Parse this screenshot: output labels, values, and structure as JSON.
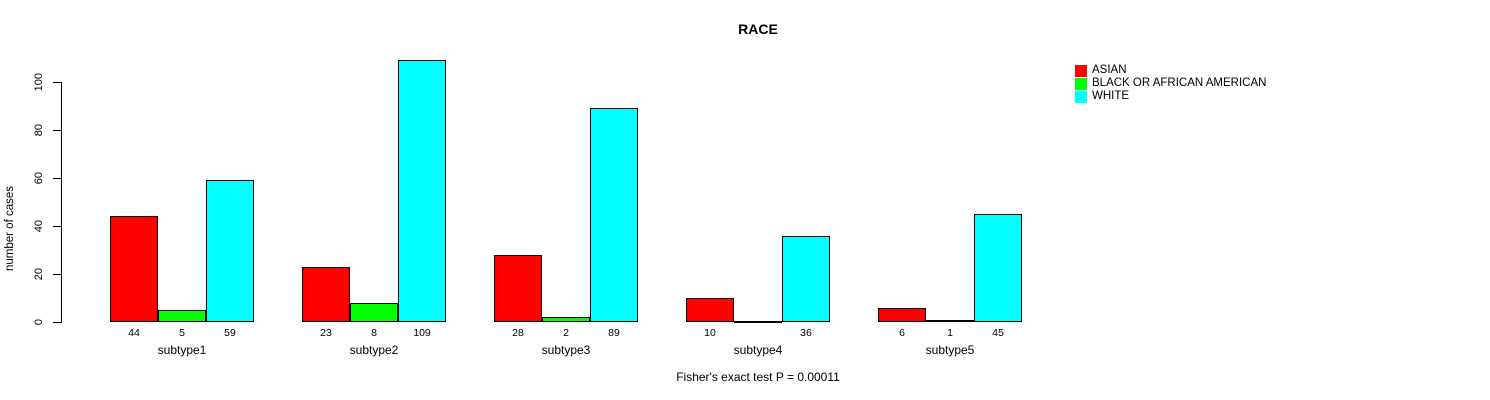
{
  "title": "RACE",
  "annotation": "Fisher's exact test P = 0.00011",
  "colors": {
    "asian": "#FF0000",
    "black_or_african_american": "#00FF00",
    "white": "#00FFFF",
    "axis": "#000000",
    "text": "#000000",
    "background": "#FFFFFF"
  },
  "chart_data": {
    "type": "bar",
    "grouped": true,
    "title": "RACE",
    "ylabel": "number of cases",
    "xlabel": "",
    "annotation": "Fisher's exact test P = 0.00011",
    "categories": [
      "subtype1",
      "subtype2",
      "subtype3",
      "subtype4",
      "subtype5"
    ],
    "series": [
      {
        "name": "ASIAN",
        "color": "#FF0000",
        "values": [
          44,
          23,
          28,
          10,
          6
        ]
      },
      {
        "name": "BLACK OR AFRICAN AMERICAN",
        "color": "#00FF00",
        "values": [
          5,
          8,
          2,
          0,
          1
        ]
      },
      {
        "name": "WHITE",
        "color": "#00FFFF",
        "values": [
          59,
          109,
          89,
          36,
          45
        ]
      }
    ],
    "value_labels": [
      [
        "44",
        "5",
        "59"
      ],
      [
        "23",
        "8",
        "109"
      ],
      [
        "28",
        "2",
        "89"
      ],
      [
        "10",
        "",
        "36"
      ],
      [
        "6",
        "1",
        "45"
      ]
    ],
    "yticks": [
      0,
      20,
      40,
      60,
      80,
      100
    ],
    "ylim": [
      0,
      100
    ],
    "grid": false,
    "legend_position": "right"
  }
}
